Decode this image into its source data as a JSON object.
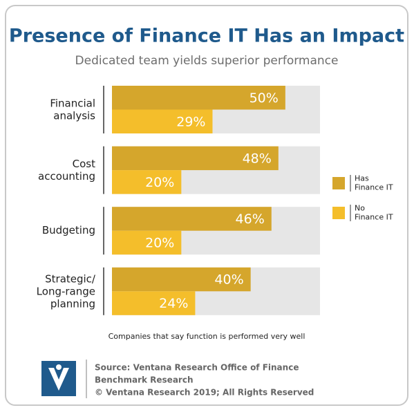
{
  "chart_data": {
    "type": "hbar",
    "title": "Presence of Finance IT Has an Impact",
    "subtitle": "Dedicated team yields superior performance",
    "categories": [
      "Financial\nanalysis",
      "Cost\naccounting",
      "Budgeting",
      "Strategic/\nLong-range\nplanning"
    ],
    "series": [
      {
        "name": "Has\nFinance IT",
        "color": "#d5a62c",
        "values": [
          50,
          48,
          46,
          40
        ],
        "value_labels": [
          "50%",
          "48%",
          "46%",
          "40%"
        ]
      },
      {
        "name": "No\nFinance IT",
        "color": "#f4be2b",
        "values": [
          29,
          20,
          20,
          24
        ],
        "value_labels": [
          "29%",
          "20%",
          "20%",
          "24%"
        ]
      }
    ],
    "xlim": [
      0,
      60
    ],
    "note": "Companies that say function is performed very well",
    "source": [
      "Source: Ventana Research Office of Finance",
      "Benchmark Research",
      "© Ventana Research 2019; All Rights Reserved"
    ]
  }
}
